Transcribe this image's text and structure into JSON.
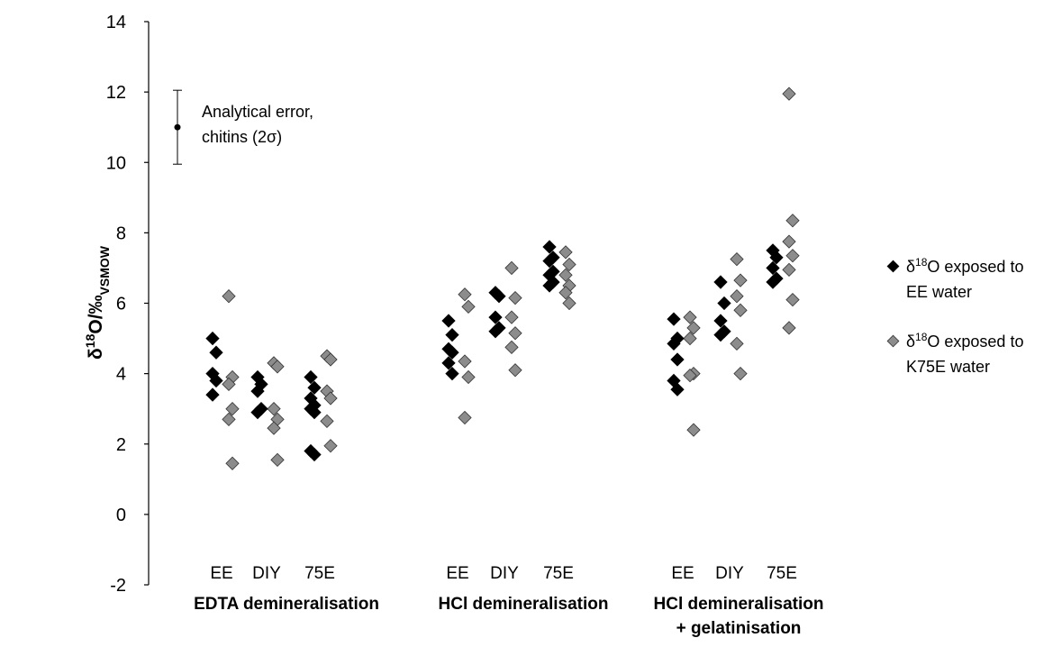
{
  "chart_data": {
    "type": "scatter",
    "ylabel": {
      "main": "δ",
      "sup": "18",
      "mid": "O/‰",
      "sub": "VSMOW"
    },
    "ylim": [
      -2,
      14
    ],
    "yticks": [
      -2,
      0,
      2,
      4,
      6,
      8,
      10,
      12,
      14
    ],
    "categories": [
      "EE",
      "DIY",
      "75E",
      "EE",
      "DIY",
      "75E",
      "EE",
      "DIY",
      "75E"
    ],
    "groups": [
      {
        "lines": [
          "EDTA demineralisation"
        ]
      },
      {
        "lines": [
          "HCl demineralisation"
        ]
      },
      {
        "lines": [
          "HCl demineralisation",
          "+ gelatinisation"
        ]
      }
    ],
    "annotation": {
      "lines": [
        "Analytical error,",
        "chitins (2σ)"
      ],
      "center": 11.0,
      "low": 9.95,
      "high": 12.05
    },
    "legend": {
      "placement": "right",
      "entries": [
        {
          "pre": "δ",
          "sup": "18",
          "lines": [
            "O exposed to",
            "EE water"
          ]
        },
        {
          "pre": "δ",
          "sup": "18",
          "lines": [
            "O exposed to",
            "K75E water"
          ]
        }
      ]
    },
    "series": [
      {
        "color": "#000000",
        "values": [
          [
            5.0,
            4.6,
            4.0,
            3.8,
            3.4
          ],
          [
            3.9,
            3.7,
            3.5,
            3.0,
            2.9
          ],
          [
            3.9,
            3.6,
            3.3,
            3.1,
            3.0,
            2.9,
            1.8,
            1.7
          ],
          [
            5.5,
            5.1,
            4.7,
            4.6,
            4.3,
            4.0
          ],
          [
            6.3,
            6.2,
            5.6,
            5.3,
            5.2
          ],
          [
            7.6,
            7.3,
            7.2,
            6.9,
            6.8,
            6.6,
            6.5
          ],
          [
            5.55,
            5.0,
            4.85,
            4.4,
            3.8,
            3.55
          ],
          [
            6.6,
            6.0,
            5.5,
            5.2,
            5.1
          ],
          [
            7.5,
            7.3,
            7.0,
            6.7,
            6.6
          ]
        ]
      },
      {
        "color": "#8c8c8c",
        "values": [
          [
            6.2,
            3.9,
            3.7,
            3.0,
            2.7,
            1.45
          ],
          [
            4.3,
            4.2,
            3.0,
            2.7,
            2.45,
            1.55
          ],
          [
            4.5,
            4.4,
            3.5,
            3.3,
            2.65,
            1.95
          ],
          [
            6.25,
            5.9,
            4.35,
            3.9,
            2.75
          ],
          [
            7.0,
            6.15,
            5.6,
            5.15,
            4.75,
            4.1
          ],
          [
            7.45,
            7.1,
            6.8,
            6.5,
            6.3,
            6.0
          ],
          [
            5.6,
            5.3,
            5.0,
            4.0,
            3.95,
            2.4
          ],
          [
            7.25,
            6.65,
            6.2,
            5.8,
            4.85,
            4.0
          ],
          [
            11.95,
            8.35,
            7.75,
            7.35,
            6.95,
            6.1,
            5.3
          ]
        ]
      }
    ]
  }
}
